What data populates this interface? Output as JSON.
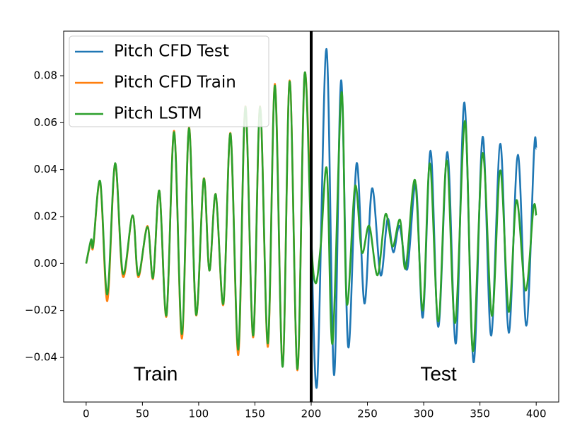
{
  "chart_data": {
    "type": "line",
    "xlim": [
      -20,
      420
    ],
    "ylim": [
      -0.059,
      0.099
    ],
    "xticks": [
      0,
      50,
      100,
      150,
      200,
      250,
      300,
      350,
      400
    ],
    "yticks": [
      {
        "value": -0.04,
        "label": "−0.04"
      },
      {
        "value": -0.02,
        "label": "−0.02"
      },
      {
        "value": 0,
        "label": "0.00"
      },
      {
        "value": 0.02,
        "label": "0.02"
      },
      {
        "value": 0.04,
        "label": "0.04"
      },
      {
        "value": 0.06,
        "label": "0.06"
      },
      {
        "value": 0.08,
        "label": "0.08"
      }
    ],
    "vlines": [
      200
    ],
    "annotations": [
      "Train",
      "Test"
    ],
    "legend": "upper left",
    "series": [
      {
        "name": "Pitch CFD Test",
        "color": "#1f77b4",
        "x": [
          200,
          205.3,
          213.5,
          220.3,
          226.6,
          232.9,
          240.4,
          247.3,
          254.1,
          261.7,
          267.9,
          273,
          278.6,
          285.4,
          293,
          299.2,
          306.1,
          313,
          321.1,
          328.6,
          336.2,
          344.3,
          352.4,
          359.9,
          368.1,
          375.6,
          383.7,
          391.2,
          398.1,
          400
        ],
        "values": [
          0.015,
          -0.0514,
          0.0914,
          -0.0475,
          0.078,
          -0.0355,
          0.0427,
          -0.017,
          0.032,
          -0.005,
          0.019,
          0.0048,
          0.016,
          -0.0024,
          0.0337,
          -0.023,
          0.048,
          -0.027,
          0.0475,
          -0.034,
          0.0686,
          -0.042,
          0.054,
          -0.0307,
          0.051,
          -0.0295,
          0.0463,
          -0.0265,
          0.048,
          0.049
        ]
      },
      {
        "name": "Pitch CFD Train",
        "color": "#ff7f0e",
        "x": [
          0,
          4.4,
          6.3,
          12.5,
          18.8,
          25.7,
          32.6,
          41.3,
          46.3,
          54.5,
          59.5,
          65.1,
          71.4,
          78.2,
          85.1,
          91.4,
          97.7,
          104.5,
          109.5,
          115.2,
          122,
          128.3,
          135.2,
          141.5,
          148.4,
          154.6,
          161.5,
          167.8,
          174.6,
          180.9,
          187.8,
          194.1,
          200
        ],
        "values": [
          0,
          0.0095,
          0.0072,
          0.0345,
          -0.016,
          0.0425,
          -0.0055,
          0.0205,
          -0.0058,
          0.016,
          -0.0065,
          0.031,
          -0.0225,
          0.0565,
          -0.032,
          0.058,
          -0.022,
          0.0362,
          -0.003,
          0.0295,
          -0.0175,
          0.0555,
          -0.039,
          0.067,
          -0.0315,
          0.067,
          -0.0355,
          0.0765,
          -0.0435,
          0.078,
          -0.0455,
          0.0805,
          0.012
        ]
      },
      {
        "name": "Pitch LSTM",
        "color": "#2ca02c",
        "x": [
          0,
          4.4,
          6.3,
          12.5,
          18.8,
          25.7,
          32.6,
          41.3,
          46.3,
          54.5,
          59.5,
          65.1,
          71.4,
          78.2,
          85.1,
          91.4,
          97.7,
          104.5,
          109.5,
          115.2,
          122,
          128.3,
          135.2,
          141.5,
          148.4,
          154.6,
          161.5,
          167.8,
          174.6,
          180.9,
          187.8,
          194.1,
          200,
          204,
          208.5,
          214,
          219,
          227,
          231.6,
          239,
          245,
          251.6,
          259,
          266,
          272.3,
          279,
          284,
          292.3,
          299.2,
          305.5,
          313,
          320.5,
          328,
          336.8,
          343.7,
          352.4,
          360.6,
          368.1,
          375.6,
          382.5,
          390.6,
          397.5,
          400
        ],
        "values": [
          0,
          0.0102,
          0.0078,
          0.035,
          -0.0132,
          0.0427,
          -0.0042,
          0.0205,
          -0.005,
          0.0156,
          -0.006,
          0.031,
          -0.022,
          0.056,
          -0.03,
          0.0577,
          -0.0217,
          0.036,
          -0.003,
          0.0295,
          -0.017,
          0.0553,
          -0.0367,
          0.0668,
          -0.0307,
          0.0668,
          -0.034,
          0.0758,
          -0.044,
          0.0776,
          -0.045,
          0.0806,
          0.01,
          -0.0084,
          0.0078,
          0.04,
          -0.034,
          0.073,
          -0.017,
          0.033,
          0.0048,
          0.016,
          -0.005,
          0.021,
          0.0072,
          0.0186,
          -0.002,
          0.0355,
          -0.02,
          0.0427,
          -0.0247,
          0.0439,
          -0.0253,
          0.0607,
          -0.0373,
          0.047,
          -0.0223,
          0.0397,
          -0.0205,
          0.027,
          -0.0115,
          0.0235,
          0.0205
        ]
      }
    ]
  }
}
